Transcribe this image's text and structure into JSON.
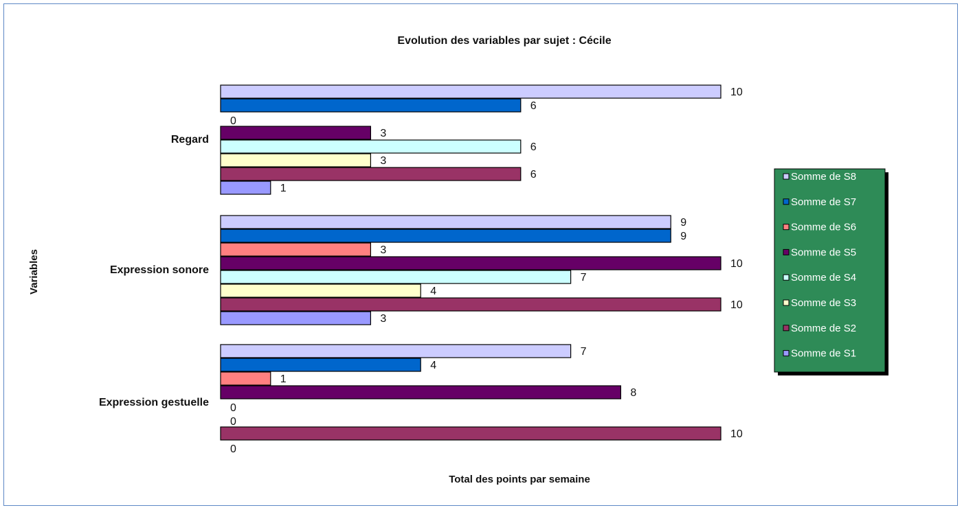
{
  "chart_data": {
    "type": "bar",
    "orientation": "horizontal",
    "title": "Evolution des variables par sujet : Cécile",
    "xlabel": "Total des points par semaine",
    "ylabel": "Variables",
    "categories": [
      "Regard",
      "Expression sonore",
      "Expression gestuelle"
    ],
    "series": [
      {
        "name": "Somme de S8",
        "color": "#CCCCFF",
        "values": [
          10,
          9,
          7
        ]
      },
      {
        "name": "Somme de S7",
        "color": "#0066CC",
        "values": [
          6,
          9,
          4
        ]
      },
      {
        "name": "Somme de S6",
        "color": "#FF8080",
        "values": [
          0,
          3,
          1
        ]
      },
      {
        "name": "Somme de S5",
        "color": "#660066",
        "values": [
          3,
          10,
          8
        ]
      },
      {
        "name": "Somme de S4",
        "color": "#CCFFFF",
        "values": [
          6,
          7,
          0
        ]
      },
      {
        "name": "Somme de S3",
        "color": "#FFFFCC",
        "values": [
          3,
          4,
          0
        ]
      },
      {
        "name": "Somme de S2",
        "color": "#993366",
        "values": [
          6,
          10,
          10
        ]
      },
      {
        "name": "Somme de S1",
        "color": "#9999FF",
        "values": [
          1,
          3,
          0
        ]
      }
    ],
    "xlim": [
      0,
      10
    ],
    "grid": false,
    "legend_position": "right",
    "legend_background": "#2E8B57"
  }
}
